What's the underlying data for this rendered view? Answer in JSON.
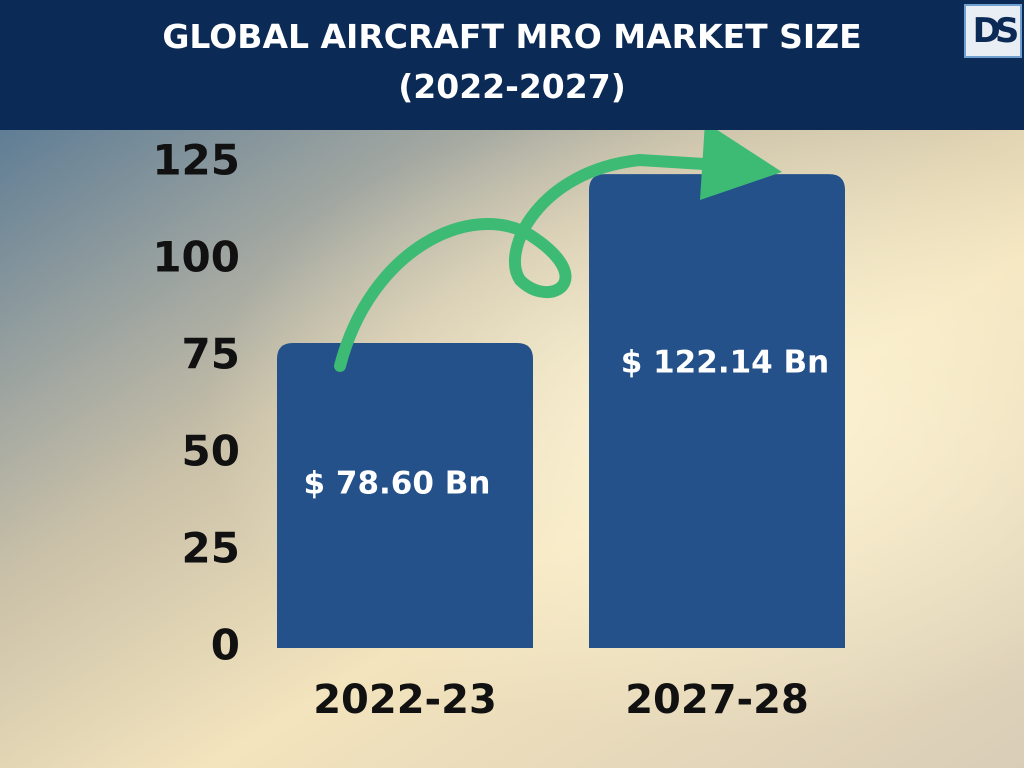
{
  "logo": "DS",
  "chart_data": {
    "type": "bar",
    "title": "GLOBAL AIRCRAFT MRO MARKET SIZE (2022-2027)",
    "categories": [
      "2022-23",
      "2027-28"
    ],
    "values": [
      78.6,
      122.14
    ],
    "value_labels": [
      "$ 78.60 Bn",
      "$ 122.14 Bn"
    ],
    "color": "#25518b",
    "ylim": [
      0,
      125
    ],
    "yticks": [
      0,
      25,
      50,
      75,
      100,
      125
    ],
    "grid": false
  }
}
